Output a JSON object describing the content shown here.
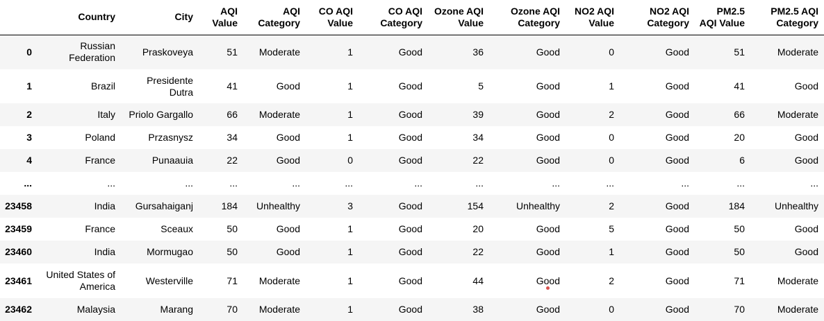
{
  "table": {
    "columns": [
      "",
      "Country",
      "City",
      "AQI Value",
      "AQI Category",
      "CO AQI Value",
      "CO AQI Category",
      "Ozone AQI Value",
      "Ozone AQI Category",
      "NO2 AQI Value",
      "NO2 AQI Category",
      "PM2.5 AQI Value",
      "PM2.5 AQI Category"
    ],
    "rows": [
      [
        "0",
        "Russian Federation",
        "Praskoveya",
        "51",
        "Moderate",
        "1",
        "Good",
        "36",
        "Good",
        "0",
        "Good",
        "51",
        "Moderate"
      ],
      [
        "1",
        "Brazil",
        "Presidente Dutra",
        "41",
        "Good",
        "1",
        "Good",
        "5",
        "Good",
        "1",
        "Good",
        "41",
        "Good"
      ],
      [
        "2",
        "Italy",
        "Priolo Gargallo",
        "66",
        "Moderate",
        "1",
        "Good",
        "39",
        "Good",
        "2",
        "Good",
        "66",
        "Moderate"
      ],
      [
        "3",
        "Poland",
        "Przasnysz",
        "34",
        "Good",
        "1",
        "Good",
        "34",
        "Good",
        "0",
        "Good",
        "20",
        "Good"
      ],
      [
        "4",
        "France",
        "Punaauia",
        "22",
        "Good",
        "0",
        "Good",
        "22",
        "Good",
        "0",
        "Good",
        "6",
        "Good"
      ],
      [
        "...",
        "...",
        "...",
        "...",
        "...",
        "...",
        "...",
        "...",
        "...",
        "...",
        "...",
        "...",
        "..."
      ],
      [
        "23458",
        "India",
        "Gursahaiganj",
        "184",
        "Unhealthy",
        "3",
        "Good",
        "154",
        "Unhealthy",
        "2",
        "Good",
        "184",
        "Unhealthy"
      ],
      [
        "23459",
        "France",
        "Sceaux",
        "50",
        "Good",
        "1",
        "Good",
        "20",
        "Good",
        "5",
        "Good",
        "50",
        "Good"
      ],
      [
        "23460",
        "India",
        "Mormugao",
        "50",
        "Good",
        "1",
        "Good",
        "22",
        "Good",
        "1",
        "Good",
        "50",
        "Good"
      ],
      [
        "23461",
        "United States of America",
        "Westerville",
        "71",
        "Moderate",
        "1",
        "Good",
        "44",
        "Good",
        "2",
        "Good",
        "71",
        "Moderate"
      ],
      [
        "23462",
        "Malaysia",
        "Marang",
        "70",
        "Moderate",
        "1",
        "Good",
        "38",
        "Good",
        "0",
        "Good",
        "70",
        "Moderate"
      ]
    ]
  },
  "colors": {
    "row_stripe": "#f5f5f5",
    "header_rule": "#000000",
    "cursor_dot": "#d9534f"
  }
}
